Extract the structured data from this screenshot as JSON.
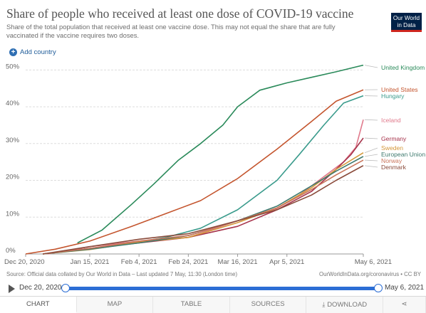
{
  "header": {
    "title": "Share of people who received at least one dose of COVID-19 vaccine",
    "subtitle": "Share of the total population that received at least one vaccine dose. This may not equal the share that are fully vaccinated if the vaccine requires two doses.",
    "logo_line1": "Our World",
    "logo_line2": "in Data",
    "add_country": "Add country"
  },
  "footer": {
    "source": "Source: Official data collated by Our World in Data – Last updated 7 May, 11:30 (London time)",
    "credit": "OurWorldInData.org/coronavirus • CC BY"
  },
  "timeline": {
    "start": "Dec 20, 2020",
    "end": "May 6, 2021"
  },
  "tabs": {
    "chart": "CHART",
    "map": "MAP",
    "table": "TABLE",
    "sources": "SOURCES",
    "download": "DOWNLOAD"
  },
  "chart_data": {
    "type": "line",
    "title": "Share of people who received at least one dose of COVID-19 vaccine",
    "x_type": "date",
    "xlim": [
      "2020-12-20",
      "2021-05-06"
    ],
    "ylim": [
      0,
      52
    ],
    "y_ticks": [
      0,
      10,
      20,
      30,
      40,
      50
    ],
    "y_tick_labels": [
      "0%",
      "10%",
      "20%",
      "30%",
      "40%",
      "50%"
    ],
    "x_ticks": [
      "2020-12-20",
      "2021-01-15",
      "2021-02-04",
      "2021-02-24",
      "2021-03-16",
      "2021-04-05",
      "2021-05-06"
    ],
    "x_tick_labels": [
      "Dec 20, 2020",
      "Jan 15, 2021",
      "Feb 4, 2021",
      "Feb 24, 2021",
      "Mar 16, 2021",
      "Apr 5, 2021",
      "May 6, 2021"
    ],
    "grid": true,
    "legend": "right, at line ends",
    "series": [
      {
        "name": "United Kingdom",
        "color": "#2a8a5a",
        "x": [
          "2021-01-10",
          "2021-01-20",
          "2021-02-01",
          "2021-02-10",
          "2021-02-20",
          "2021-03-01",
          "2021-03-10",
          "2021-03-16",
          "2021-03-25",
          "2021-04-05",
          "2021-04-15",
          "2021-04-25",
          "2021-05-06"
        ],
        "y": [
          3,
          6.5,
          13.5,
          19,
          25.5,
          30,
          35,
          40,
          44.5,
          46.5,
          48,
          49.5,
          51.3
        ]
      },
      {
        "name": "United States",
        "color": "#c4552e",
        "x": [
          "2020-12-20",
          "2021-01-01",
          "2021-01-15",
          "2021-02-01",
          "2021-02-15",
          "2021-03-01",
          "2021-03-16",
          "2021-04-01",
          "2021-04-15",
          "2021-04-25",
          "2021-05-06"
        ],
        "y": [
          0,
          1.3,
          3.5,
          7.5,
          11,
          14.5,
          20.5,
          28.5,
          36,
          41.5,
          44.6
        ]
      },
      {
        "name": "Hungary",
        "color": "#3a9b8c",
        "x": [
          "2020-12-27",
          "2021-01-15",
          "2021-02-01",
          "2021-02-15",
          "2021-03-01",
          "2021-03-16",
          "2021-04-01",
          "2021-04-10",
          "2021-04-20",
          "2021-04-28",
          "2021-05-06"
        ],
        "y": [
          0,
          1.5,
          3,
          4.5,
          7,
          12,
          20,
          27,
          35,
          41,
          43
        ]
      },
      {
        "name": "Iceland",
        "color": "#e07a8c",
        "x": [
          "2020-12-29",
          "2021-01-15",
          "2021-02-04",
          "2021-02-24",
          "2021-03-16",
          "2021-03-31",
          "2021-04-10",
          "2021-04-20",
          "2021-04-28",
          "2021-05-03",
          "2021-05-06"
        ],
        "y": [
          0,
          2,
          3.5,
          4.5,
          9,
          12,
          16,
          21,
          25,
          29,
          36.5
        ]
      },
      {
        "name": "Germany",
        "color": "#a6334b",
        "x": [
          "2020-12-27",
          "2021-01-15",
          "2021-02-04",
          "2021-02-24",
          "2021-03-16",
          "2021-04-01",
          "2021-04-15",
          "2021-04-25",
          "2021-05-01",
          "2021-05-06"
        ],
        "y": [
          0,
          1.5,
          3,
          4.5,
          7.5,
          12,
          17,
          23,
          27,
          31.5
        ]
      },
      {
        "name": "Sweden",
        "color": "#d4983a",
        "x": [
          "2020-12-27",
          "2021-01-15",
          "2021-02-04",
          "2021-02-24",
          "2021-03-16",
          "2021-04-01",
          "2021-04-15",
          "2021-04-25",
          "2021-05-06"
        ],
        "y": [
          0,
          1.2,
          3.2,
          4.5,
          8.5,
          12.5,
          18,
          23,
          27.5
        ]
      },
      {
        "name": "European Union",
        "color": "#3e7a6e",
        "x": [
          "2020-12-27",
          "2021-01-15",
          "2021-02-04",
          "2021-02-24",
          "2021-03-16",
          "2021-04-01",
          "2021-04-15",
          "2021-04-25",
          "2021-05-06"
        ],
        "y": [
          0,
          1.3,
          3,
          5,
          9,
          13,
          18.5,
          22.5,
          26.5
        ]
      },
      {
        "name": "Norway",
        "color": "#c9745a",
        "x": [
          "2020-12-27",
          "2021-01-15",
          "2021-02-04",
          "2021-02-24",
          "2021-03-16",
          "2021-04-01",
          "2021-04-15",
          "2021-04-25",
          "2021-05-06"
        ],
        "y": [
          0,
          1.5,
          3.5,
          5,
          9,
          12.5,
          17.5,
          21.5,
          25.5
        ]
      },
      {
        "name": "Denmark",
        "color": "#8a4a3a",
        "x": [
          "2020-12-27",
          "2021-01-15",
          "2021-02-04",
          "2021-02-24",
          "2021-03-16",
          "2021-04-01",
          "2021-04-15",
          "2021-04-25",
          "2021-05-06"
        ],
        "y": [
          0,
          2,
          4,
          5.5,
          9,
          12,
          16,
          20,
          24
        ]
      }
    ]
  }
}
